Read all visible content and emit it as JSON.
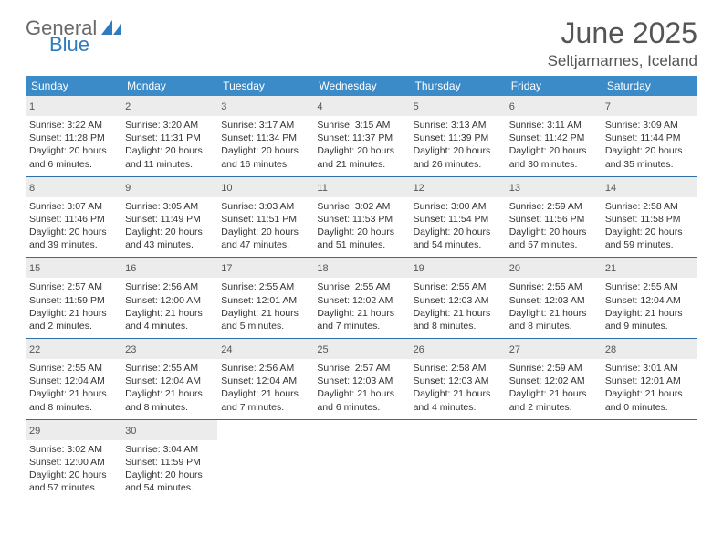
{
  "logo": {
    "word1": "General",
    "word2": "Blue",
    "sail_color": "#2f7bbf"
  },
  "title": "June 2025",
  "location": "Seltjarnarnes, Iceland",
  "colors": {
    "header_bg": "#3b8bc9",
    "header_text": "#ffffff",
    "daynum_bg": "#ececec",
    "week_border": "#2f6ea6",
    "body_text": "#333333",
    "title_text": "#555555"
  },
  "weekdays": [
    "Sunday",
    "Monday",
    "Tuesday",
    "Wednesday",
    "Thursday",
    "Friday",
    "Saturday"
  ],
  "days": [
    {
      "n": "1",
      "sunrise": "Sunrise: 3:22 AM",
      "sunset": "Sunset: 11:28 PM",
      "d1": "Daylight: 20 hours",
      "d2": "and 6 minutes."
    },
    {
      "n": "2",
      "sunrise": "Sunrise: 3:20 AM",
      "sunset": "Sunset: 11:31 PM",
      "d1": "Daylight: 20 hours",
      "d2": "and 11 minutes."
    },
    {
      "n": "3",
      "sunrise": "Sunrise: 3:17 AM",
      "sunset": "Sunset: 11:34 PM",
      "d1": "Daylight: 20 hours",
      "d2": "and 16 minutes."
    },
    {
      "n": "4",
      "sunrise": "Sunrise: 3:15 AM",
      "sunset": "Sunset: 11:37 PM",
      "d1": "Daylight: 20 hours",
      "d2": "and 21 minutes."
    },
    {
      "n": "5",
      "sunrise": "Sunrise: 3:13 AM",
      "sunset": "Sunset: 11:39 PM",
      "d1": "Daylight: 20 hours",
      "d2": "and 26 minutes."
    },
    {
      "n": "6",
      "sunrise": "Sunrise: 3:11 AM",
      "sunset": "Sunset: 11:42 PM",
      "d1": "Daylight: 20 hours",
      "d2": "and 30 minutes."
    },
    {
      "n": "7",
      "sunrise": "Sunrise: 3:09 AM",
      "sunset": "Sunset: 11:44 PM",
      "d1": "Daylight: 20 hours",
      "d2": "and 35 minutes."
    },
    {
      "n": "8",
      "sunrise": "Sunrise: 3:07 AM",
      "sunset": "Sunset: 11:46 PM",
      "d1": "Daylight: 20 hours",
      "d2": "and 39 minutes."
    },
    {
      "n": "9",
      "sunrise": "Sunrise: 3:05 AM",
      "sunset": "Sunset: 11:49 PM",
      "d1": "Daylight: 20 hours",
      "d2": "and 43 minutes."
    },
    {
      "n": "10",
      "sunrise": "Sunrise: 3:03 AM",
      "sunset": "Sunset: 11:51 PM",
      "d1": "Daylight: 20 hours",
      "d2": "and 47 minutes."
    },
    {
      "n": "11",
      "sunrise": "Sunrise: 3:02 AM",
      "sunset": "Sunset: 11:53 PM",
      "d1": "Daylight: 20 hours",
      "d2": "and 51 minutes."
    },
    {
      "n": "12",
      "sunrise": "Sunrise: 3:00 AM",
      "sunset": "Sunset: 11:54 PM",
      "d1": "Daylight: 20 hours",
      "d2": "and 54 minutes."
    },
    {
      "n": "13",
      "sunrise": "Sunrise: 2:59 AM",
      "sunset": "Sunset: 11:56 PM",
      "d1": "Daylight: 20 hours",
      "d2": "and 57 minutes."
    },
    {
      "n": "14",
      "sunrise": "Sunrise: 2:58 AM",
      "sunset": "Sunset: 11:58 PM",
      "d1": "Daylight: 20 hours",
      "d2": "and 59 minutes."
    },
    {
      "n": "15",
      "sunrise": "Sunrise: 2:57 AM",
      "sunset": "Sunset: 11:59 PM",
      "d1": "Daylight: 21 hours",
      "d2": "and 2 minutes."
    },
    {
      "n": "16",
      "sunrise": "Sunrise: 2:56 AM",
      "sunset": "Sunset: 12:00 AM",
      "d1": "Daylight: 21 hours",
      "d2": "and 4 minutes."
    },
    {
      "n": "17",
      "sunrise": "Sunrise: 2:55 AM",
      "sunset": "Sunset: 12:01 AM",
      "d1": "Daylight: 21 hours",
      "d2": "and 5 minutes."
    },
    {
      "n": "18",
      "sunrise": "Sunrise: 2:55 AM",
      "sunset": "Sunset: 12:02 AM",
      "d1": "Daylight: 21 hours",
      "d2": "and 7 minutes."
    },
    {
      "n": "19",
      "sunrise": "Sunrise: 2:55 AM",
      "sunset": "Sunset: 12:03 AM",
      "d1": "Daylight: 21 hours",
      "d2": "and 8 minutes."
    },
    {
      "n": "20",
      "sunrise": "Sunrise: 2:55 AM",
      "sunset": "Sunset: 12:03 AM",
      "d1": "Daylight: 21 hours",
      "d2": "and 8 minutes."
    },
    {
      "n": "21",
      "sunrise": "Sunrise: 2:55 AM",
      "sunset": "Sunset: 12:04 AM",
      "d1": "Daylight: 21 hours",
      "d2": "and 9 minutes."
    },
    {
      "n": "22",
      "sunrise": "Sunrise: 2:55 AM",
      "sunset": "Sunset: 12:04 AM",
      "d1": "Daylight: 21 hours",
      "d2": "and 8 minutes."
    },
    {
      "n": "23",
      "sunrise": "Sunrise: 2:55 AM",
      "sunset": "Sunset: 12:04 AM",
      "d1": "Daylight: 21 hours",
      "d2": "and 8 minutes."
    },
    {
      "n": "24",
      "sunrise": "Sunrise: 2:56 AM",
      "sunset": "Sunset: 12:04 AM",
      "d1": "Daylight: 21 hours",
      "d2": "and 7 minutes."
    },
    {
      "n": "25",
      "sunrise": "Sunrise: 2:57 AM",
      "sunset": "Sunset: 12:03 AM",
      "d1": "Daylight: 21 hours",
      "d2": "and 6 minutes."
    },
    {
      "n": "26",
      "sunrise": "Sunrise: 2:58 AM",
      "sunset": "Sunset: 12:03 AM",
      "d1": "Daylight: 21 hours",
      "d2": "and 4 minutes."
    },
    {
      "n": "27",
      "sunrise": "Sunrise: 2:59 AM",
      "sunset": "Sunset: 12:02 AM",
      "d1": "Daylight: 21 hours",
      "d2": "and 2 minutes."
    },
    {
      "n": "28",
      "sunrise": "Sunrise: 3:01 AM",
      "sunset": "Sunset: 12:01 AM",
      "d1": "Daylight: 21 hours",
      "d2": "and 0 minutes."
    },
    {
      "n": "29",
      "sunrise": "Sunrise: 3:02 AM",
      "sunset": "Sunset: 12:00 AM",
      "d1": "Daylight: 20 hours",
      "d2": "and 57 minutes."
    },
    {
      "n": "30",
      "sunrise": "Sunrise: 3:04 AM",
      "sunset": "Sunset: 11:59 PM",
      "d1": "Daylight: 20 hours",
      "d2": "and 54 minutes."
    }
  ]
}
